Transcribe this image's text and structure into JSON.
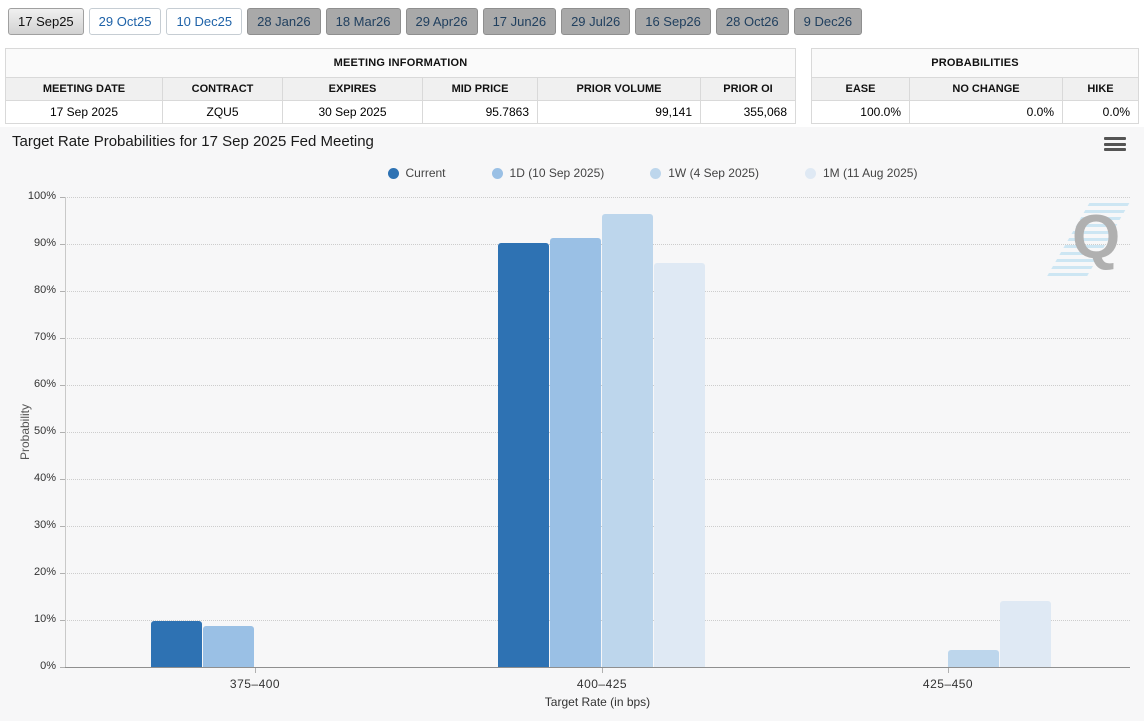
{
  "tabs": [
    {
      "label": "17 Sep25",
      "state": "selected"
    },
    {
      "label": "29 Oct25",
      "state": "link"
    },
    {
      "label": "10 Dec25",
      "state": "link"
    },
    {
      "label": "28 Jan26",
      "state": "inactive"
    },
    {
      "label": "18 Mar26",
      "state": "inactive"
    },
    {
      "label": "29 Apr26",
      "state": "inactive"
    },
    {
      "label": "17 Jun26",
      "state": "inactive"
    },
    {
      "label": "29 Jul26",
      "state": "inactive"
    },
    {
      "label": "16 Sep26",
      "state": "inactive"
    },
    {
      "label": "28 Oct26",
      "state": "inactive"
    },
    {
      "label": "9 Dec26",
      "state": "inactive"
    }
  ],
  "meeting_information": {
    "title": "MEETING INFORMATION",
    "columns": [
      "MEETING DATE",
      "CONTRACT",
      "EXPIRES",
      "MID PRICE",
      "PRIOR VOLUME",
      "PRIOR OI"
    ],
    "row": [
      "17 Sep 2025",
      "ZQU5",
      "30 Sep 2025",
      "95.7863",
      "99,141",
      "355,068"
    ]
  },
  "probabilities": {
    "title": "PROBABILITIES",
    "columns": [
      "EASE",
      "NO CHANGE",
      "HIKE"
    ],
    "row": [
      "100.0%",
      "0.0%",
      "0.0%"
    ]
  },
  "chart_data": {
    "type": "bar",
    "title": "Target Rate Probabilities for 17 Sep 2025 Fed Meeting",
    "categories": [
      "375–400",
      "400–425",
      "425–450"
    ],
    "series": [
      {
        "name": "Current",
        "color": "#2e72b3",
        "values": [
          9.8,
          90.2,
          0
        ]
      },
      {
        "name": "1D (10 Sep 2025)",
        "color": "#9ac0e5",
        "values": [
          8.8,
          91.2,
          0
        ]
      },
      {
        "name": "1W (4 Sep 2025)",
        "color": "#bdd6ec",
        "values": [
          0,
          96.4,
          3.6
        ]
      },
      {
        "name": "1M (11 Aug 2025)",
        "color": "#dfe9f4",
        "values": [
          0,
          86,
          14
        ]
      }
    ],
    "xlabel": "Target Rate (in bps)",
    "ylabel": "Probability",
    "ylim": [
      0,
      100
    ],
    "yticks": [
      "0%",
      "10%",
      "20%",
      "30%",
      "40%",
      "50%",
      "60%",
      "70%",
      "80%",
      "90%",
      "100%"
    ],
    "legend_position": "top",
    "grid": "horizontal-dotted"
  },
  "watermark": {
    "letter": "Q"
  },
  "ui_colors": {
    "tab_link_text": "#1e62a8",
    "tab_inactive_bg": "#a9a9a9",
    "tab_inactive_text": "#21405f",
    "chart_bg": "#f7f7f8"
  }
}
